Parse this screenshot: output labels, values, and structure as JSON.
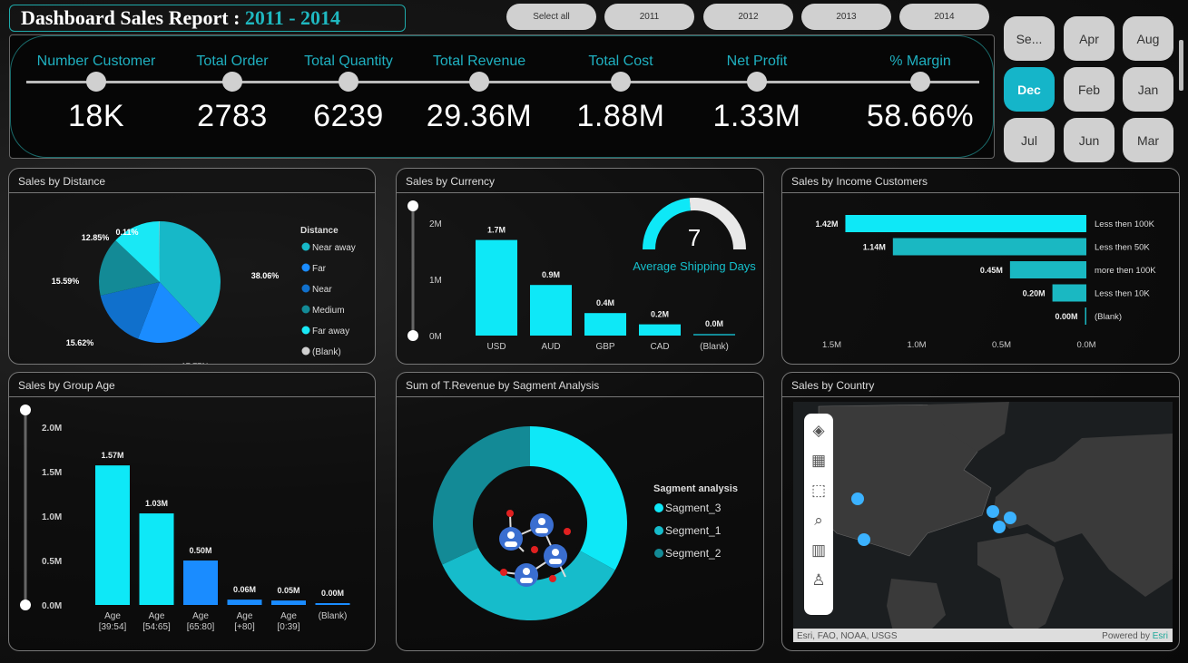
{
  "title": {
    "main": "Dashboard Sales Report",
    "sep": " : ",
    "years": "2011 - 2014"
  },
  "year_slicer": [
    "Select all",
    "2011",
    "2012",
    "2013",
    "2014"
  ],
  "kpis": [
    {
      "label": "Number Customer",
      "value": "18K"
    },
    {
      "label": "Total Order",
      "value": "2783"
    },
    {
      "label": "Total Quantity",
      "value": "6239"
    },
    {
      "label": "Total Revenue",
      "value": "29.36M"
    },
    {
      "label": "Total Cost",
      "value": "1.88M"
    },
    {
      "label": "Net Profit",
      "value": "1.33M"
    },
    {
      "label": "% Margin",
      "value": "58.66%"
    }
  ],
  "month_slicer": {
    "items": [
      "Se...",
      "Apr",
      "Aug",
      "Dec",
      "Feb",
      "Jan",
      "Jul",
      "Jun",
      "Mar"
    ],
    "selected": "Dec"
  },
  "colors": {
    "accent": "#15b5c9",
    "cyan": "#0ee8f7",
    "blue": "#1a8cff"
  },
  "distance": {
    "title": "Sales by Distance",
    "legend_title": "Distance",
    "chart_data": {
      "type": "pie",
      "slices": [
        {
          "name": "Near away",
          "value": 38.06,
          "label": "38.06%",
          "color": "#17b8c8"
        },
        {
          "name": "Far",
          "value": 17.77,
          "label": "17.77%",
          "color": "#1a8cff"
        },
        {
          "name": "Near",
          "value": 15.62,
          "label": "15.62%",
          "color": "#1070cc"
        },
        {
          "name": "Medium",
          "value": 15.59,
          "label": "15.59%",
          "color": "#138a96"
        },
        {
          "name": "Far away",
          "value": 12.85,
          "label": "12.85%",
          "color": "#19e8f5"
        },
        {
          "name": "(Blank)",
          "value": 0.11,
          "label": "0.11%",
          "color": "#d0d0d0"
        }
      ]
    }
  },
  "currency": {
    "title": "Sales by Currency",
    "chart_data": {
      "type": "bar",
      "categories": [
        "USD",
        "AUD",
        "GBP",
        "CAD",
        "(Blank)"
      ],
      "values": [
        1.7,
        0.9,
        0.4,
        0.2,
        0.0
      ],
      "labels": [
        "1.7M",
        "0.9M",
        "0.4M",
        "0.2M",
        "0.0M"
      ],
      "yticks": [
        "0M",
        "1M",
        "2M"
      ],
      "ylim": [
        0,
        2
      ]
    },
    "gauge": {
      "value": "7",
      "label": "Average Shipping Days",
      "fill_fraction": 0.47
    }
  },
  "income": {
    "title": "Sales by Income Customers",
    "chart_data": {
      "type": "bar",
      "orientation": "horizontal",
      "categories": [
        "Less then 100K",
        "Less then 50K",
        "more then 100K",
        "Less then 10K",
        "(Blank)"
      ],
      "values": [
        1.42,
        1.14,
        0.45,
        0.2,
        0.0
      ],
      "labels": [
        "1.42M",
        "1.14M",
        "0.45M",
        "0.20M",
        "0.00M"
      ],
      "xticks": [
        "1.5M",
        "1.0M",
        "0.5M",
        "0.0M"
      ],
      "xlim": [
        0,
        1.5
      ]
    }
  },
  "age": {
    "title": "Sales by Group Age",
    "chart_data": {
      "type": "bar",
      "categories": [
        [
          "Age",
          "[39:54]"
        ],
        [
          "Age",
          "[54:65]"
        ],
        [
          "Age",
          "[65:80]"
        ],
        [
          "Age",
          "[+80]"
        ],
        [
          "Age",
          "[0:39]"
        ],
        [
          "(Blank)",
          ""
        ]
      ],
      "values": [
        1.57,
        1.03,
        0.5,
        0.06,
        0.05,
        0.0
      ],
      "labels": [
        "1.57M",
        "1.03M",
        "0.50M",
        "0.06M",
        "0.05M",
        "0.00M"
      ],
      "yticks": [
        "0.0M",
        "0.5M",
        "1.0M",
        "1.5M",
        "2.0M"
      ],
      "ylim": [
        0,
        2
      ]
    }
  },
  "segment": {
    "title": "Sum of T.Revenue by Sagment Analysis",
    "legend_title": "Sagment analysis",
    "chart_data": {
      "type": "pie",
      "donut": true,
      "slices": [
        {
          "name": "Sagment_3",
          "value": 33,
          "color": "#0ee8f7"
        },
        {
          "name": "Segment_1",
          "value": 35,
          "color": "#16bccb"
        },
        {
          "name": "Segment_2",
          "value": 32,
          "color": "#138a96"
        }
      ]
    }
  },
  "country": {
    "title": "Sales by Country",
    "attribution": "Esri, FAO, NOAA, USGS",
    "powered": "Powered by ",
    "esri": "Esri",
    "tools": [
      "layers-icon",
      "qr-icon",
      "select-rect-icon",
      "search-icon",
      "chart-icon",
      "person-icon"
    ]
  }
}
